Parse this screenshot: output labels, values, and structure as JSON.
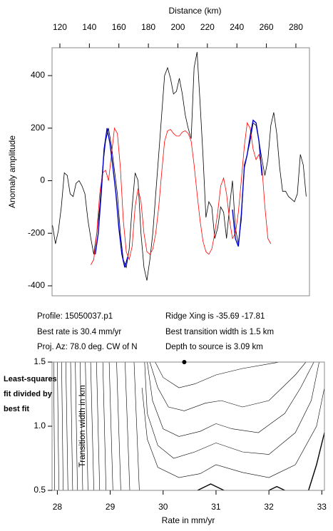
{
  "chart_data": [
    {
      "type": "line",
      "xlabel": "Distance (km)",
      "ylabel": "Anomaly amplitude",
      "xlim": [
        114.7,
        289.2
      ],
      "ylim": [
        -438,
        506
      ],
      "xticks": [
        120,
        140,
        160,
        180,
        200,
        220,
        240,
        260,
        280
      ],
      "yticks": [
        -400,
        -200,
        0,
        200,
        400
      ],
      "annotations": [
        "Profile: 15050037.p1",
        "Best rate is 30.4 mm/yr",
        "Proj. Az: 78.0 deg. CW of N",
        "Ridge Xing is -35.69 -17.81",
        "Best transition width is 1.5 km",
        "Depth to source is   3.09 km"
      ],
      "series": [
        {
          "color": "#000000",
          "x": [
            115,
            117,
            119,
            121,
            123,
            125,
            127,
            129,
            131,
            133,
            135,
            137,
            139,
            141,
            143,
            145,
            147,
            149,
            151,
            153,
            155,
            157,
            159,
            161,
            163,
            165,
            167,
            169,
            171,
            173,
            175,
            177,
            179,
            181,
            183,
            185,
            187,
            189,
            191,
            193,
            195,
            197,
            199,
            201,
            203,
            205,
            207,
            209,
            211,
            213,
            215,
            217,
            219,
            221,
            223,
            225,
            227,
            229,
            231,
            233,
            235,
            237,
            239,
            241,
            243,
            245,
            247,
            249,
            251,
            253,
            255,
            257,
            259,
            261,
            263,
            265,
            267,
            269,
            271,
            273,
            275,
            277,
            279,
            281,
            283,
            285,
            287
          ],
          "values": [
            -170,
            -240,
            -190,
            -100,
            30,
            20,
            -50,
            -60,
            -10,
            0,
            -20,
            -50,
            -150,
            -220,
            -280,
            -200,
            -100,
            50,
            150,
            200,
            130,
            40,
            -50,
            -200,
            -300,
            -330,
            -260,
            -100,
            30,
            0,
            -200,
            -330,
            -380,
            -300,
            -200,
            -50,
            100,
            250,
            400,
            430,
            390,
            330,
            340,
            390,
            330,
            250,
            200,
            160,
            430,
            490,
            300,
            100,
            -140,
            -80,
            -100,
            -220,
            -180,
            -100,
            -120,
            -220,
            -100,
            0,
            -180,
            -240,
            -150,
            60,
            100,
            150,
            220,
            210,
            150,
            80,
            20,
            80,
            210,
            260,
            180,
            50,
            -40,
            -40,
            -60,
            -70,
            -80,
            -50,
            100,
            60,
            -60
          ]
        },
        {
          "color": "#ff0000",
          "x": [
            141,
            143,
            145,
            147,
            149,
            151,
            153,
            155,
            157,
            159,
            161,
            163,
            165,
            167,
            169,
            171,
            173,
            175,
            177,
            179,
            181,
            183,
            185,
            187,
            189,
            191,
            193,
            195,
            197,
            199,
            201,
            203,
            205,
            207,
            209,
            211,
            213,
            215,
            217,
            219,
            221,
            223,
            225,
            227,
            229,
            231,
            233,
            235,
            237,
            239,
            241,
            243,
            245,
            247,
            249,
            251,
            253,
            255,
            257,
            259,
            261,
            263
          ],
          "values": [
            -320,
            -300,
            -200,
            -50,
            30,
            40,
            0,
            100,
            200,
            180,
            50,
            -150,
            -270,
            -300,
            -250,
            -100,
            -30,
            -80,
            -200,
            -270,
            -280,
            -260,
            -200,
            -100,
            30,
            150,
            190,
            195,
            180,
            170,
            170,
            185,
            190,
            180,
            150,
            60,
            -50,
            -150,
            -230,
            -270,
            -280,
            -260,
            -200,
            -120,
            -20,
            10,
            -50,
            -150,
            -220,
            -200,
            -120,
            0,
            130,
            220,
            200,
            120,
            80,
            100,
            50,
            -100,
            -220,
            -240
          ]
        },
        {
          "color": "#0000cc",
          "x": [
            144,
            146,
            148,
            150,
            152,
            154,
            156,
            158,
            160,
            162,
            164,
            166
          ],
          "values": [
            -280,
            -200,
            -50,
            120,
            200,
            140,
            50,
            -50,
            -180,
            -280,
            -330,
            -290
          ]
        },
        {
          "color": "#0000cc",
          "x": [
            237,
            239,
            241,
            243,
            245,
            247,
            249,
            251,
            253,
            255,
            257
          ],
          "values": [
            -110,
            -220,
            -250,
            -130,
            50,
            100,
            170,
            230,
            220,
            150,
            20
          ]
        }
      ]
    },
    {
      "type": "contour",
      "xlabel": "Rate in mm/yr",
      "ylabel": "Transition width in km",
      "annotations": [
        "Least-squares",
        "fit divided by",
        "best fit"
      ],
      "xlim": [
        27.9,
        33.05
      ],
      "ylim": [
        0.5,
        1.5
      ],
      "xticks": [
        28,
        29,
        30,
        31,
        32,
        33
      ],
      "yticks": [
        {
          "value": 0.5,
          "label": "0.5"
        },
        {
          "value": 1.0,
          "label": "1.0"
        },
        {
          "value": 1.5,
          "label": "1.5"
        }
      ],
      "best": {
        "x": 30.4,
        "y": 1.5
      },
      "contours": [
        {
          "x": [
            27.95,
            27.93
          ],
          "y": [
            0.5,
            1.5
          ]
        },
        {
          "x": [
            28.03,
            28.0
          ],
          "y": [
            0.5,
            1.5
          ]
        },
        {
          "x": [
            28.11,
            28.08
          ],
          "y": [
            0.5,
            1.5
          ]
        },
        {
          "x": [
            28.2,
            28.16
          ],
          "y": [
            0.5,
            1.5
          ]
        },
        {
          "x": [
            28.29,
            28.25
          ],
          "y": [
            0.5,
            1.5
          ]
        },
        {
          "x": [
            28.38,
            28.34
          ],
          "y": [
            0.5,
            1.5
          ]
        },
        {
          "x": [
            28.48,
            28.43
          ],
          "y": [
            0.5,
            1.5
          ]
        },
        {
          "x": [
            28.58,
            28.53
          ],
          "y": [
            0.5,
            1.5
          ]
        },
        {
          "x": [
            28.69,
            28.63
          ],
          "y": [
            0.5,
            1.5
          ]
        },
        {
          "x": [
            28.8,
            28.74
          ],
          "y": [
            0.5,
            1.5
          ]
        },
        {
          "x": [
            28.92,
            28.86
          ],
          "y": [
            0.5,
            1.5
          ]
        },
        {
          "x": [
            29.05,
            28.98
          ],
          "y": [
            0.5,
            1.5
          ]
        },
        {
          "x": [
            29.2,
            29.12
          ],
          "y": [
            0.5,
            1.5
          ]
        },
        {
          "x": [
            29.37,
            29.28
          ],
          "y": [
            0.5,
            1.5
          ]
        },
        {
          "x": [
            29.55,
            29.45
          ],
          "y": [
            0.5,
            1.5
          ]
        },
        {
          "x": [
            29.85,
            30.0,
            30.3,
            30.6,
            31.0,
            31.5,
            32.2
          ],
          "y": [
            1.5,
            1.38,
            1.3,
            1.33,
            1.4,
            1.45,
            1.5
          ]
        },
        {
          "x": [
            29.75,
            29.9,
            30.1,
            30.4,
            30.8,
            31.1,
            31.5,
            32.0,
            32.5,
            32.7
          ],
          "y": [
            1.5,
            1.3,
            1.15,
            1.12,
            1.18,
            1.2,
            1.15,
            1.2,
            1.4,
            1.5
          ]
        },
        {
          "x": [
            29.7,
            29.8,
            30.0,
            30.3,
            30.7,
            31.0,
            31.3,
            31.8,
            32.3,
            32.6,
            32.85
          ],
          "y": [
            1.5,
            1.2,
            0.98,
            0.92,
            0.96,
            1.02,
            0.98,
            0.95,
            1.1,
            1.3,
            1.5
          ]
        },
        {
          "x": [
            29.65,
            29.7,
            29.9,
            30.2,
            30.6,
            31.0,
            31.5,
            32.0,
            32.5,
            32.8,
            32.95
          ],
          "y": [
            1.5,
            1.1,
            0.85,
            0.75,
            0.8,
            0.87,
            0.8,
            0.78,
            0.95,
            1.2,
            1.5
          ]
        },
        {
          "x": [
            29.6,
            29.7,
            29.9,
            30.3,
            30.7,
            31.0,
            31.5,
            32.0,
            32.5,
            32.9,
            33.05
          ],
          "y": [
            1.3,
            0.9,
            0.68,
            0.6,
            0.63,
            0.7,
            0.64,
            0.6,
            0.7,
            1.0,
            1.3
          ]
        },
        {
          "x": [
            30.65,
            30.9,
            31.15
          ],
          "y": [
            0.5,
            0.55,
            0.5
          ]
        },
        {
          "x": [
            32.0,
            32.15,
            32.3
          ],
          "y": [
            0.5,
            0.53,
            0.5
          ]
        },
        {
          "x": [
            32.75,
            32.9,
            33.05
          ],
          "y": [
            0.5,
            0.7,
            0.95
          ]
        }
      ]
    }
  ]
}
